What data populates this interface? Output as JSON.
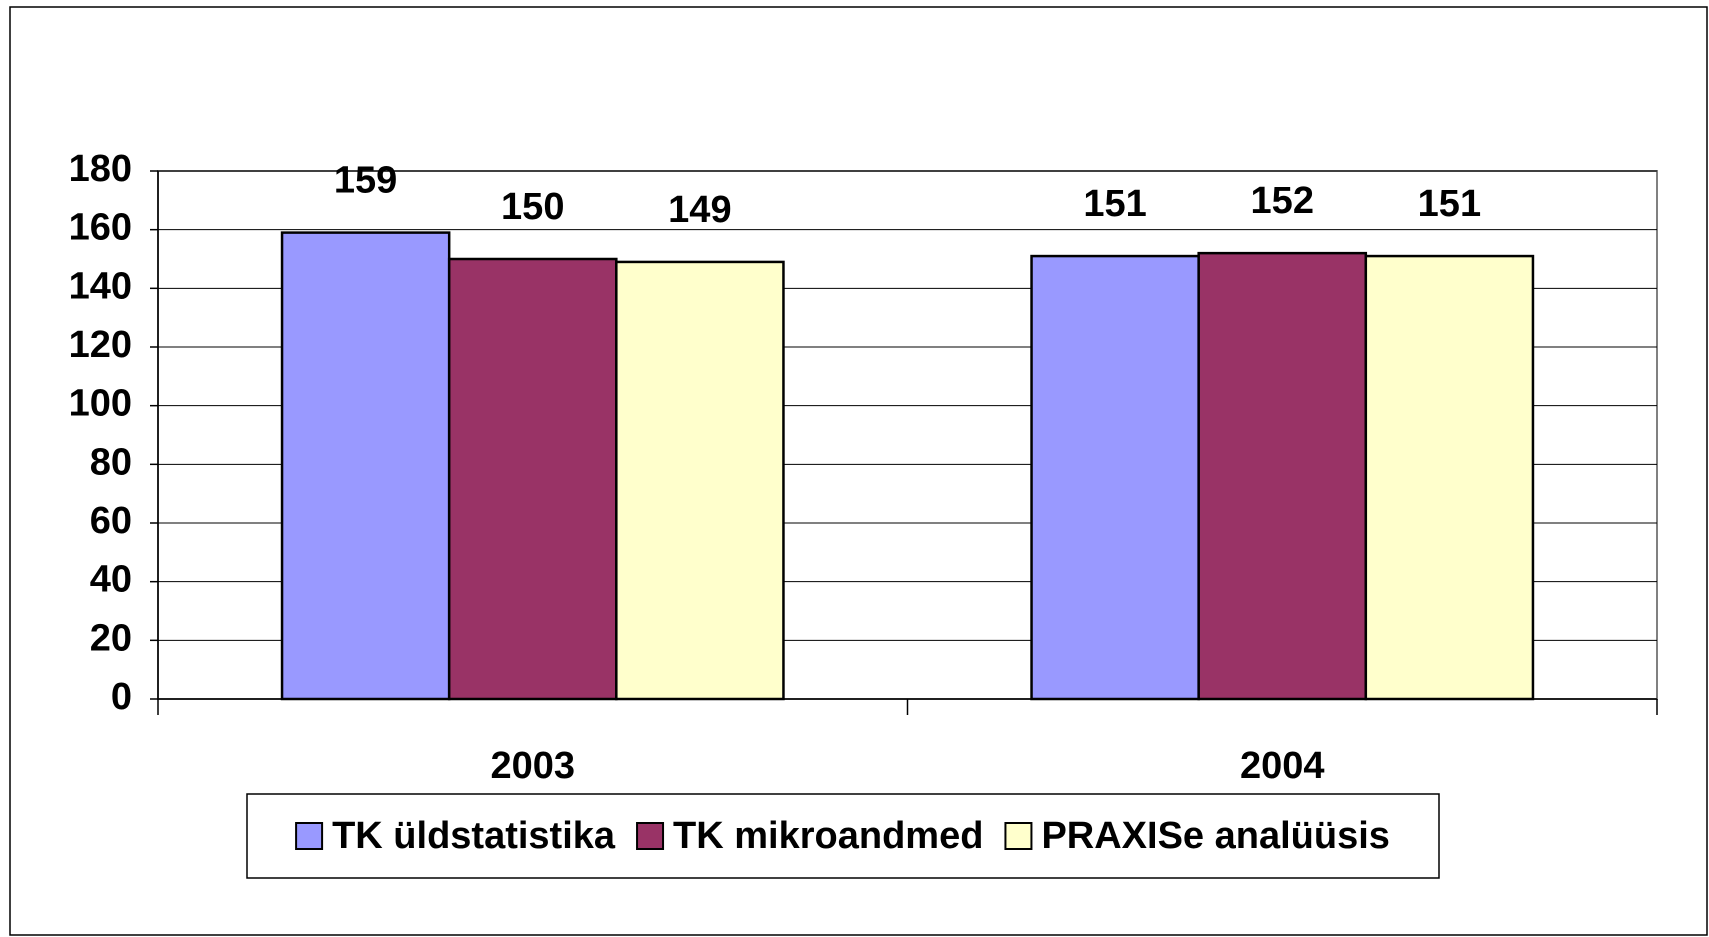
{
  "chart_data": {
    "type": "bar",
    "categories": [
      "2003",
      "2004"
    ],
    "series": [
      {
        "name": "TK üldstatistika",
        "color": "#9999ff",
        "values": [
          159,
          151
        ]
      },
      {
        "name": "TK mikroandmed",
        "color": "#993366",
        "values": [
          150,
          152
        ]
      },
      {
        "name": "PRAXISe analüüsis",
        "color": "#ffffcc",
        "values": [
          149,
          151
        ]
      }
    ],
    "ylim": [
      0,
      180
    ],
    "yticks": [
      0,
      20,
      40,
      60,
      80,
      100,
      120,
      140,
      160,
      180
    ],
    "grid": true,
    "legend": "bottom"
  }
}
